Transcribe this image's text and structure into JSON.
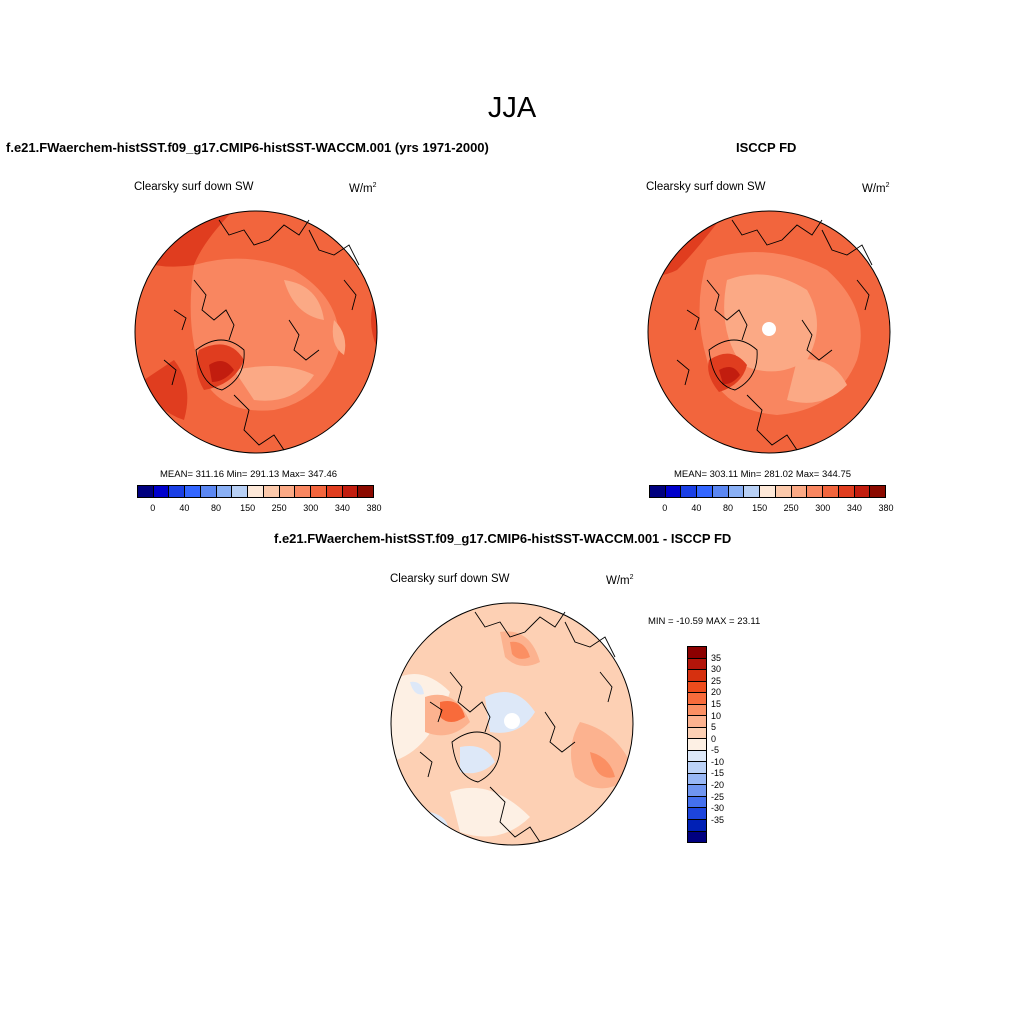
{
  "season": "JJA",
  "panels": [
    {
      "title": "f.e21.FWaerchem-histSST.f09_g17.CMIP6-histSST-WACCM.001 (yrs 1971-2000)",
      "variable": "Clearsky surf down SW",
      "units_base": "W/m",
      "units_exp": "2",
      "stats": "MEAN= 311.16  Min= 291.13  Max= 347.46",
      "mean": 311.16,
      "min": 291.13,
      "max": 347.46
    },
    {
      "title": "ISCCP FD",
      "variable": "Clearsky surf down SW",
      "units_base": "W/m",
      "units_exp": "2",
      "stats": "MEAN= 303.11  Min= 281.02  Max= 344.75",
      "mean": 303.11,
      "min": 281.02,
      "max": 344.75
    },
    {
      "title": "f.e21.FWaerchem-histSST.f09_g17.CMIP6-histSST-WACCM.001 - ISCCP FD",
      "variable": "Clearsky surf down SW",
      "units_base": "W/m",
      "units_exp": "2",
      "stats": "MIN = -10.59 MAX =  23.11",
      "min": -10.59,
      "max": 23.11
    }
  ],
  "abs_colorbar": {
    "colors": [
      "#00007f",
      "#0000cc",
      "#1a3fe5",
      "#3366ff",
      "#5b87f2",
      "#8ab0f5",
      "#b8d0f5",
      "#fde8d8",
      "#fcc9ab",
      "#fba985",
      "#f98660",
      "#f2653d",
      "#e03d1f",
      "#c21d0f",
      "#8b0a00"
    ],
    "labels": [
      "0",
      "40",
      "80",
      "150",
      "250",
      "300",
      "340",
      "380"
    ]
  },
  "diff_colorbar": {
    "colors": [
      "#8b0000",
      "#b3150a",
      "#d6300f",
      "#ee4c1c",
      "#f86b3b",
      "#fb8f63",
      "#fcb28f",
      "#fdd0b4",
      "#fdf0e4",
      "#dde8f8",
      "#bcd2f7",
      "#98b7f5",
      "#6f95f0",
      "#4470ee",
      "#1d45dd",
      "#0020b5",
      "#000080"
    ],
    "labels": [
      "35",
      "30",
      "25",
      "20",
      "15",
      "10",
      "5",
      "0",
      "-5",
      "-10",
      "-15",
      "-20",
      "-25",
      "-30",
      "-35"
    ]
  }
}
